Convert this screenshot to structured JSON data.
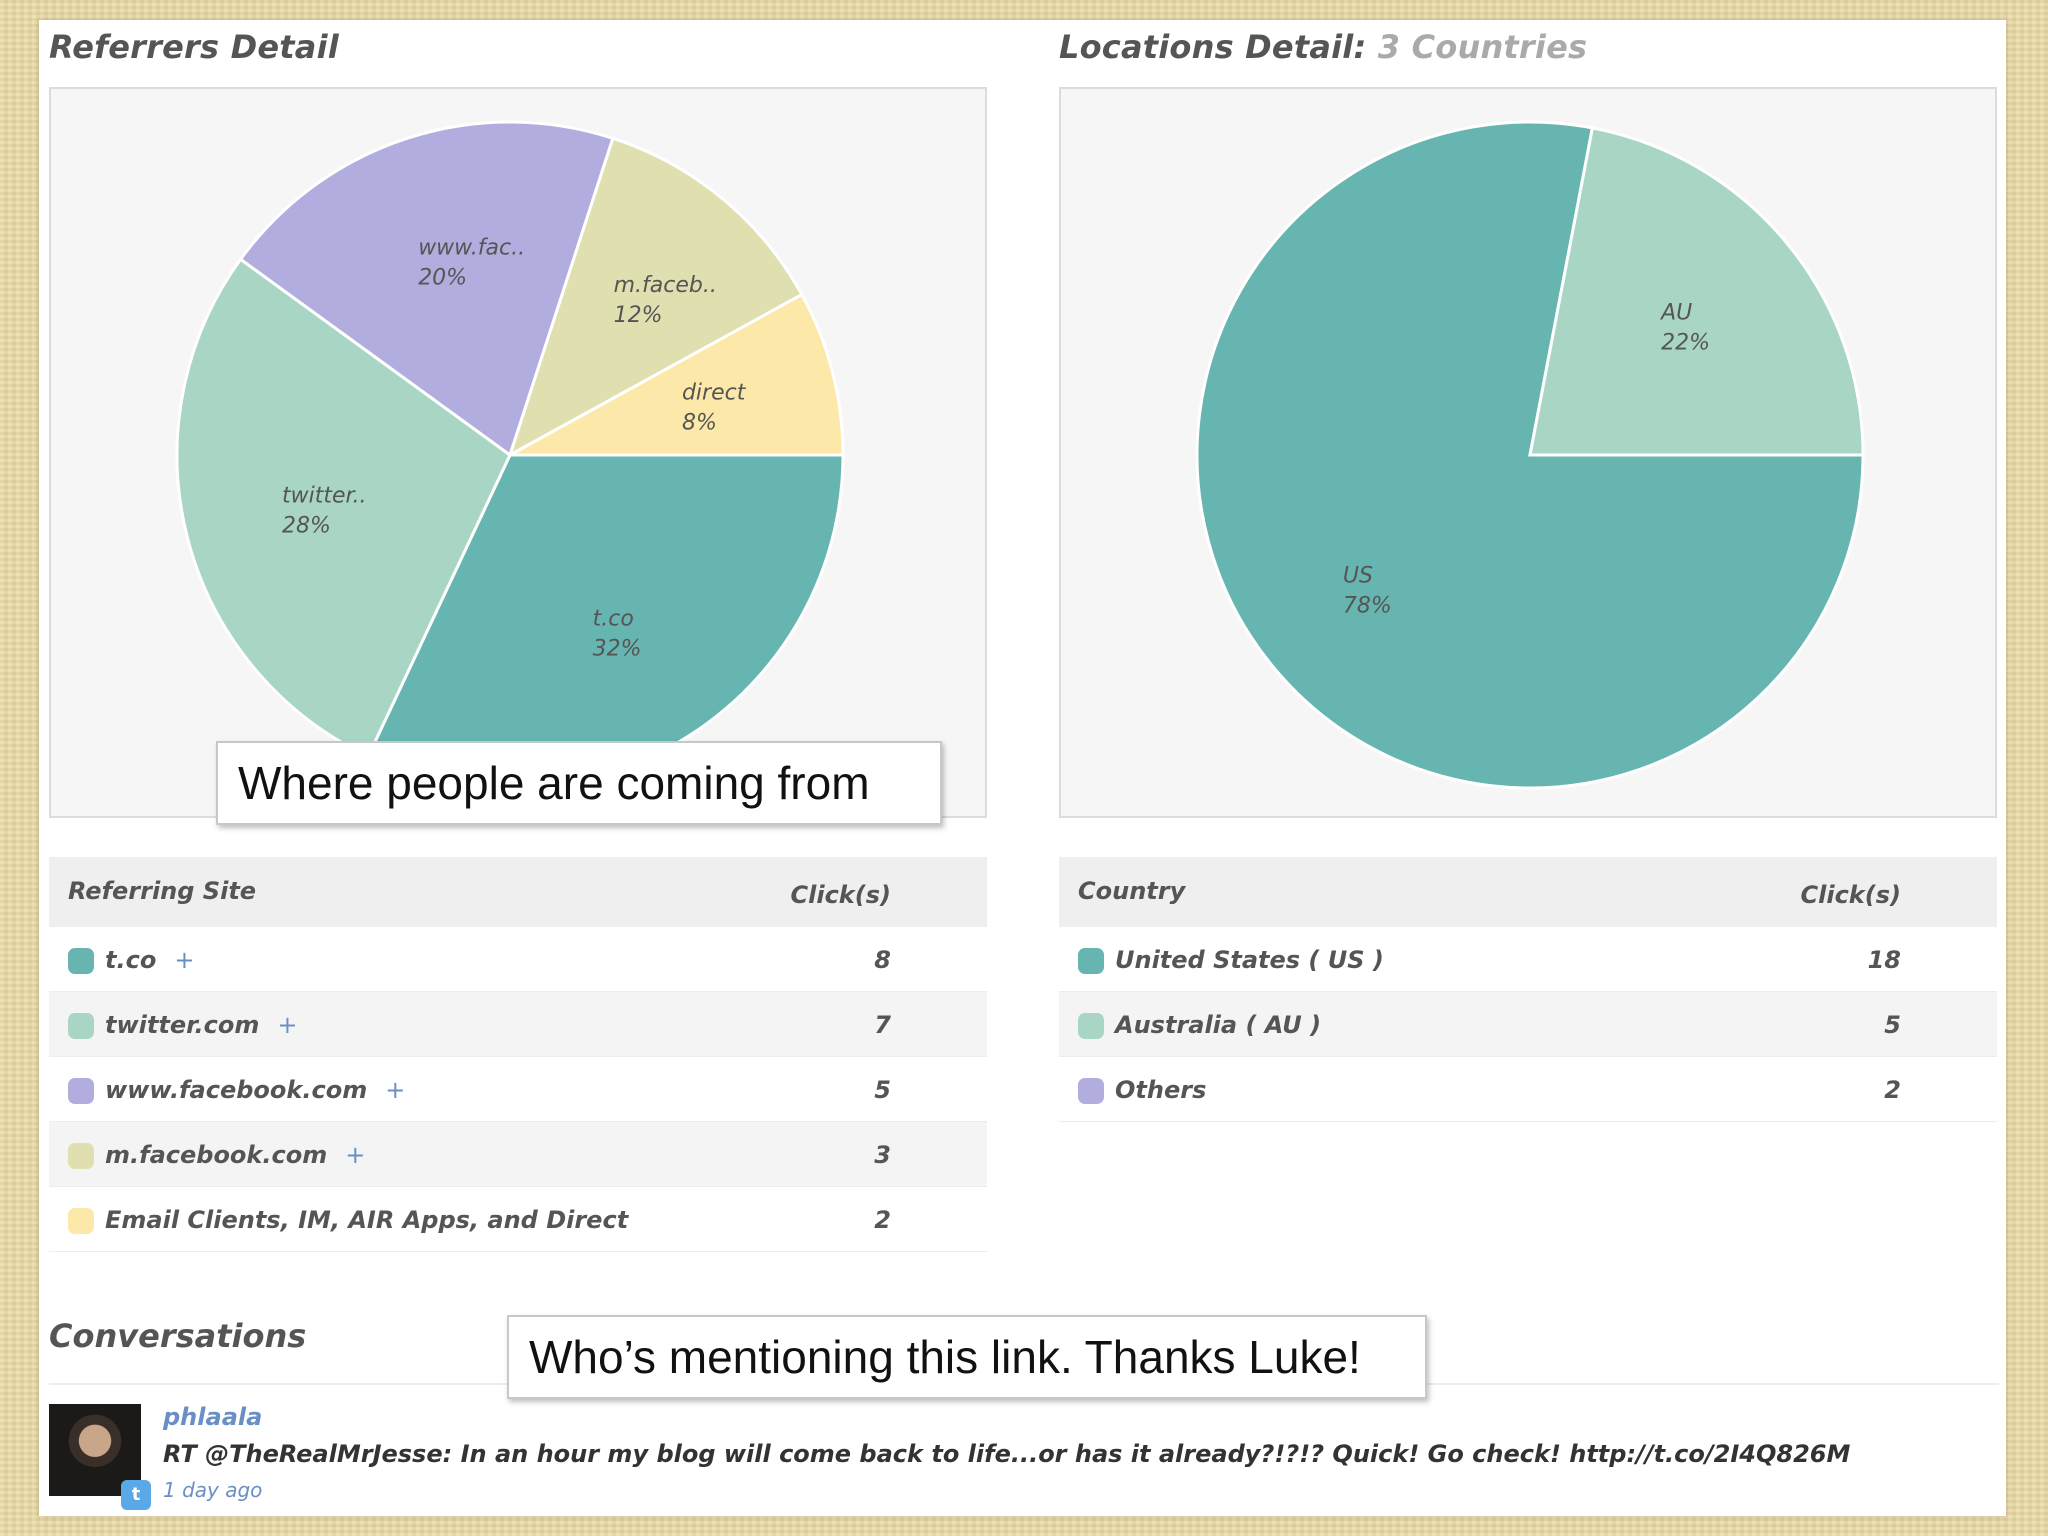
{
  "referrers": {
    "title": "Referrers Detail",
    "header": {
      "site": "Referring Site",
      "clicks": "Click(s)"
    },
    "rows": [
      {
        "name": "t.co",
        "clicks": "8",
        "expand": "+",
        "color": "#66b5b0"
      },
      {
        "name": "twitter.com",
        "clicks": "7",
        "expand": "+",
        "color": "#a9d6c4"
      },
      {
        "name": "www.facebook.com",
        "clicks": "5",
        "expand": "+",
        "color": "#b1addf"
      },
      {
        "name": "m.facebook.com",
        "clicks": "3",
        "expand": "+",
        "color": "#dfdfb0"
      },
      {
        "name": "Email Clients, IM, AIR Apps, and Direct",
        "clicks": "2",
        "expand": "",
        "color": "#fce8a8"
      }
    ]
  },
  "locations": {
    "title": "Locations Detail:",
    "subtitle": "3 Countries",
    "header": {
      "country": "Country",
      "clicks": "Click(s)"
    },
    "rows": [
      {
        "name": "United States ( US )",
        "clicks": "18",
        "color": "#66b5b0"
      },
      {
        "name": "Australia ( AU )",
        "clicks": "5",
        "color": "#a9d6c4"
      },
      {
        "name": "Others",
        "clicks": "2",
        "color": "#b1addf"
      }
    ]
  },
  "callouts": {
    "referrers": "Where people are coming from",
    "conversations": "Who’s mentioning this link. Thanks Luke!"
  },
  "conversations": {
    "title": "Conversations",
    "user": "phlaala",
    "text": "RT @TheRealMrJesse: In an hour my blog will come back to life...or has it already?!?!? Quick! Go check! http://t.co/2I4Q826M",
    "time": "1 day ago",
    "badge_icon": "twitter-bird-icon"
  },
  "chart_data": [
    {
      "type": "pie",
      "title": "Referrers Detail",
      "slices": [
        {
          "label": "t.co",
          "pct_label": "32%",
          "value": 32,
          "color": "#66b5b0"
        },
        {
          "label": "twitter..",
          "pct_label": "28%",
          "value": 28,
          "color": "#a9d6c4"
        },
        {
          "label": "www.fac..",
          "pct_label": "20%",
          "value": 20,
          "color": "#b1addf"
        },
        {
          "label": "m.faceb..",
          "pct_label": "12%",
          "value": 12,
          "color": "#dfdfb0"
        },
        {
          "label": "direct",
          "pct_label": "8%",
          "value": 8,
          "color": "#fce8a8"
        }
      ]
    },
    {
      "type": "pie",
      "title": "Locations Detail: 3 Countries",
      "slices": [
        {
          "label": "US",
          "pct_label": "78%",
          "value": 78,
          "color": "#66b5b0"
        },
        {
          "label": "AU",
          "pct_label": "22%",
          "value": 22,
          "color": "#a9d6c4"
        }
      ]
    }
  ]
}
